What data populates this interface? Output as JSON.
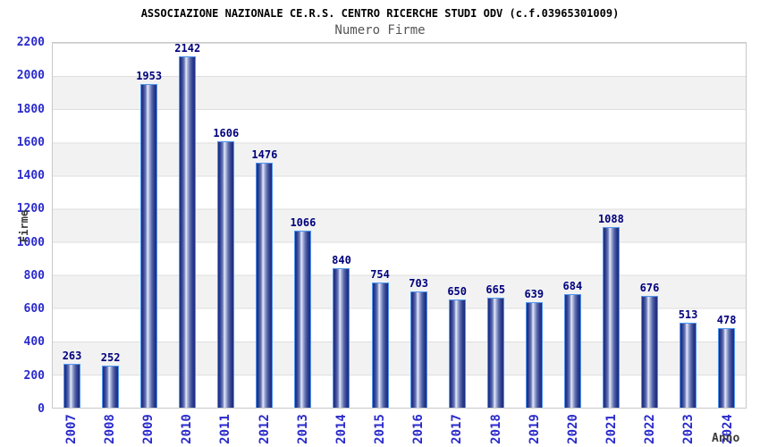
{
  "header": {
    "title": "ASSOCIAZIONE NAZIONALE CE.R.S. CENTRO RICERCHE STUDI ODV (c.f.03965301009)",
    "subtitle": "Numero Firme"
  },
  "chart_data": {
    "type": "bar",
    "title": "ASSOCIAZIONE NAZIONALE CE.R.S. CENTRO RICERCHE STUDI ODV (c.f.03965301009)",
    "subtitle": "Numero Firme",
    "categories": [
      "2007",
      "2008",
      "2009",
      "2010",
      "2011",
      "2012",
      "2013",
      "2014",
      "2015",
      "2016",
      "2017",
      "2018",
      "2019",
      "2020",
      "2021",
      "2022",
      "2023",
      "2024"
    ],
    "values": [
      263,
      252,
      1953,
      2142,
      1606,
      1476,
      1066,
      840,
      754,
      703,
      650,
      665,
      639,
      684,
      1088,
      676,
      513,
      478
    ],
    "xlabel": "Anno",
    "ylabel": "Firme",
    "ylim": [
      0,
      2200
    ],
    "yticks": [
      0,
      200,
      400,
      600,
      800,
      1000,
      1200,
      1400,
      1600,
      1800,
      2000,
      2200
    ],
    "grid": true,
    "legend": false,
    "bands": "alternating horizontal white/gray every 200 units",
    "value_labels": "above each bar"
  },
  "colors": {
    "axis_label_blue": "#2a2acc",
    "value_label_navy": "#00007d",
    "bar_edge_dark": "#1c2b7e",
    "bar_highlight": "#e7ebf7",
    "bar_outline_light_blue": "#4f97f0",
    "band_gray": "#f2f2f2",
    "grid_line": "#dedede",
    "plot_border": "#c8c8c8",
    "title_color": "#000000",
    "subtitle_color": "#555555",
    "axis_title_color": "#3a3a3a"
  }
}
